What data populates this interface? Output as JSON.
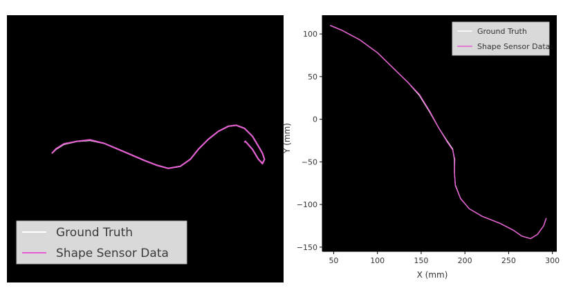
{
  "chart_data": [
    {
      "type": "line",
      "title": "",
      "xlabel": "",
      "ylabel": "",
      "grid": false,
      "legend_position": "bottom-left",
      "colors": {
        "background": "#000000",
        "ground_truth": "#f0f0f0",
        "sensor": "#e65ad2",
        "legend_bg": "#d9d9d9"
      },
      "series": [
        {
          "name": "Ground Truth",
          "x": [
            0,
            4,
            12,
            25,
            38,
            52,
            64,
            78,
            92,
            105,
            116,
            128,
            138,
            146,
            156,
            166,
            176,
            184,
            192,
            200,
            206,
            210,
            212,
            210,
            206,
            200,
            193,
            192
          ],
          "y": [
            0,
            4,
            9,
            12,
            13,
            10,
            5,
            -1,
            -7,
            -12,
            -15,
            -13,
            -6,
            4,
            14,
            22,
            27,
            28,
            25,
            17,
            7,
            0,
            -6,
            -10,
            -6,
            4,
            12,
            11
          ]
        },
        {
          "name": "Shape Sensor Data",
          "x": [
            0,
            4,
            12,
            25,
            38,
            52,
            64,
            78,
            92,
            105,
            116,
            128,
            138,
            146,
            156,
            166,
            176,
            184,
            192,
            200,
            206,
            210,
            212,
            210,
            206,
            200,
            193,
            192
          ],
          "y": [
            0,
            4.5,
            9.5,
            12,
            13.5,
            10,
            5,
            -1,
            -7,
            -12,
            -15,
            -13,
            -6,
            4,
            14,
            22,
            27,
            28,
            25,
            17,
            7,
            0,
            -6,
            -10.5,
            -6,
            4,
            12,
            11
          ]
        }
      ]
    },
    {
      "type": "line",
      "title": "",
      "xlabel": "X (mm)",
      "ylabel": "Y (mm)",
      "xlim": [
        37,
        305
      ],
      "ylim": [
        -155,
        122
      ],
      "xticks": [
        50,
        100,
        150,
        200,
        250,
        300
      ],
      "yticks": [
        -150,
        -100,
        -50,
        0,
        50,
        100
      ],
      "grid": false,
      "legend_position": "top-right",
      "colors": {
        "background": "#000000",
        "ground_truth": "#f0f0f0",
        "sensor": "#e65ad2",
        "legend_bg": "#d9d9d9"
      },
      "series": [
        {
          "name": "Ground Truth",
          "x": [
            46,
            60,
            80,
            100,
            120,
            135,
            148,
            160,
            170,
            180,
            186,
            188,
            188,
            189,
            195,
            205,
            220,
            240,
            255,
            265,
            275,
            283,
            290,
            293
          ],
          "y": [
            110,
            104,
            93,
            78,
            58,
            43,
            28,
            8,
            -10,
            -26,
            -35,
            -47,
            -62,
            -77,
            -93,
            -105,
            -114,
            -122,
            -130,
            -137,
            -140,
            -135,
            -125,
            -116
          ]
        },
        {
          "name": "Shape Sensor Data",
          "x": [
            46,
            60,
            80,
            100,
            120,
            135,
            148,
            160,
            170,
            180,
            186,
            188.5,
            188,
            189,
            195,
            205,
            220,
            240,
            255,
            265,
            275,
            283,
            290,
            293
          ],
          "y": [
            110,
            104,
            93,
            78,
            58,
            43,
            29,
            9,
            -10,
            -27,
            -36,
            -47,
            -62,
            -78,
            -93,
            -105,
            -114,
            -122,
            -130,
            -137,
            -140,
            -135,
            -125,
            -116
          ]
        }
      ]
    }
  ]
}
